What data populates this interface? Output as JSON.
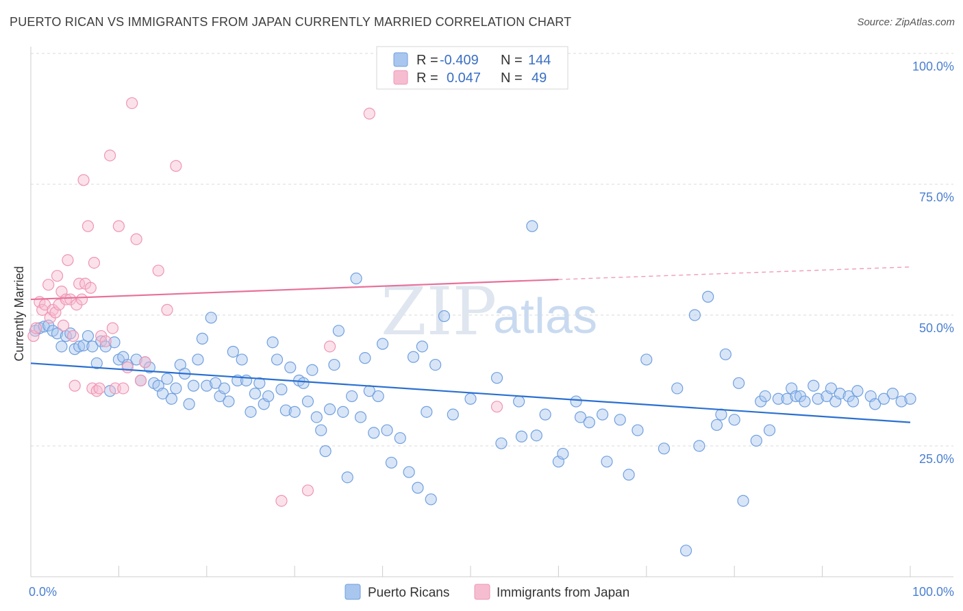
{
  "header": {
    "title": "PUERTO RICAN VS IMMIGRANTS FROM JAPAN CURRENTLY MARRIED CORRELATION CHART",
    "source": "Source: ZipAtlas.com"
  },
  "legend_box": {
    "rows": [
      {
        "r_label": "R =",
        "r_value": "-0.409",
        "n_label": "N =",
        "n_value": "144"
      },
      {
        "r_label": "R =",
        "r_value": "0.047",
        "n_label": "N =",
        "n_value": "49"
      }
    ]
  },
  "watermark": {
    "zip": "ZIP",
    "atlas": "atlas"
  },
  "colors": {
    "blue_fill": "#a9c6ee",
    "blue_stroke": "#6f9fe0",
    "blue_line": "#2a6fd1",
    "pink_fill": "#f6bdd0",
    "pink_stroke": "#ef95b4",
    "pink_line": "#e8709a",
    "grid": "#d9d9d9",
    "tick_label": "#4a7fd0"
  },
  "chart_data": {
    "type": "scatter",
    "title": "PUERTO RICAN VS IMMIGRANTS FROM JAPAN CURRENTLY MARRIED CORRELATION CHART",
    "xlabel": "",
    "ylabel": "Currently Married",
    "xlim": [
      0,
      100
    ],
    "ylim": [
      0,
      100
    ],
    "x_tick_labels": [
      "0.0%",
      "100.0%"
    ],
    "y_ticks": [
      25,
      50,
      75,
      100
    ],
    "y_tick_labels": [
      "25.0%",
      "50.0%",
      "75.0%",
      "100.0%"
    ],
    "grid": true,
    "legend_position": "bottom",
    "series": [
      {
        "name": "Puerto Ricans",
        "color": "#6f9fe0",
        "trend": {
          "x0": 0,
          "y0": 40.8,
          "x1": 100,
          "y1": 29.5
        },
        "points": [
          [
            0.5,
            47.0
          ],
          [
            1.0,
            47.5
          ],
          [
            1.5,
            47.8
          ],
          [
            2.0,
            48.0
          ],
          [
            2.5,
            47.0
          ],
          [
            3.0,
            46.5
          ],
          [
            3.5,
            44.0
          ],
          [
            4.0,
            46.0
          ],
          [
            4.5,
            46.5
          ],
          [
            5.0,
            43.5
          ],
          [
            5.5,
            44.0
          ],
          [
            6.0,
            44.2
          ],
          [
            6.5,
            46.0
          ],
          [
            7.0,
            44.0
          ],
          [
            7.5,
            40.8
          ],
          [
            8.0,
            45.0
          ],
          [
            8.5,
            44.0
          ],
          [
            9.0,
            35.5
          ],
          [
            9.5,
            44.8
          ],
          [
            10.0,
            41.5
          ],
          [
            10.5,
            42.0
          ],
          [
            11.0,
            40.5
          ],
          [
            12.0,
            41.5
          ],
          [
            12.5,
            37.5
          ],
          [
            13.0,
            41.0
          ],
          [
            13.5,
            40.0
          ],
          [
            14.0,
            37.0
          ],
          [
            14.5,
            36.5
          ],
          [
            15.0,
            35.0
          ],
          [
            15.5,
            37.8
          ],
          [
            16.0,
            34.0
          ],
          [
            16.5,
            36.0
          ],
          [
            17.0,
            40.5
          ],
          [
            17.5,
            38.8
          ],
          [
            18.0,
            33.0
          ],
          [
            18.5,
            36.5
          ],
          [
            19.0,
            41.5
          ],
          [
            19.5,
            45.5
          ],
          [
            20.0,
            36.5
          ],
          [
            20.5,
            49.5
          ],
          [
            21.0,
            37.0
          ],
          [
            21.5,
            34.5
          ],
          [
            22.0,
            36.0
          ],
          [
            22.5,
            33.5
          ],
          [
            23.0,
            43.0
          ],
          [
            23.5,
            37.5
          ],
          [
            24.0,
            41.5
          ],
          [
            24.5,
            37.5
          ],
          [
            25.0,
            31.5
          ],
          [
            25.5,
            35.0
          ],
          [
            26.0,
            37.0
          ],
          [
            26.5,
            33.0
          ],
          [
            27.0,
            34.5
          ],
          [
            27.5,
            44.8
          ],
          [
            28.0,
            41.5
          ],
          [
            28.5,
            35.8
          ],
          [
            29.0,
            31.8
          ],
          [
            29.5,
            40.0
          ],
          [
            30.0,
            31.5
          ],
          [
            30.5,
            37.5
          ],
          [
            31.0,
            37.0
          ],
          [
            31.5,
            33.5
          ],
          [
            32.0,
            39.5
          ],
          [
            32.5,
            30.5
          ],
          [
            33.0,
            28.0
          ],
          [
            33.5,
            24.0
          ],
          [
            34.0,
            32.0
          ],
          [
            34.5,
            40.5
          ],
          [
            35.0,
            47.0
          ],
          [
            35.5,
            31.5
          ],
          [
            36.0,
            19.0
          ],
          [
            36.5,
            34.5
          ],
          [
            37.0,
            57.0
          ],
          [
            37.5,
            30.5
          ],
          [
            38.0,
            41.8
          ],
          [
            38.5,
            35.5
          ],
          [
            39.0,
            27.5
          ],
          [
            39.5,
            34.5
          ],
          [
            40.0,
            44.5
          ],
          [
            40.5,
            28.0
          ],
          [
            41.0,
            21.8
          ],
          [
            42.0,
            26.5
          ],
          [
            43.0,
            20.0
          ],
          [
            43.5,
            42.0
          ],
          [
            44.0,
            17.0
          ],
          [
            44.5,
            44.0
          ],
          [
            45.0,
            31.5
          ],
          [
            45.5,
            14.8
          ],
          [
            46.0,
            40.5
          ],
          [
            47.0,
            49.8
          ],
          [
            48.0,
            31.0
          ],
          [
            50.0,
            34.0
          ],
          [
            53.0,
            38.0
          ],
          [
            53.5,
            25.5
          ],
          [
            55.5,
            33.5
          ],
          [
            55.8,
            26.8
          ],
          [
            57.0,
            67.0
          ],
          [
            57.5,
            27.0
          ],
          [
            58.5,
            31.0
          ],
          [
            60.0,
            22.0
          ],
          [
            60.5,
            23.5
          ],
          [
            62.0,
            33.5
          ],
          [
            62.5,
            30.5
          ],
          [
            63.5,
            29.5
          ],
          [
            65.0,
            31.0
          ],
          [
            65.5,
            22.0
          ],
          [
            67.0,
            30.0
          ],
          [
            68.0,
            19.5
          ],
          [
            69.0,
            28.0
          ],
          [
            70.0,
            41.5
          ],
          [
            72.0,
            24.5
          ],
          [
            73.5,
            36.0
          ],
          [
            74.5,
            5.0
          ],
          [
            75.5,
            50.0
          ],
          [
            76.0,
            25.0
          ],
          [
            77.0,
            53.5
          ],
          [
            78.0,
            29.0
          ],
          [
            78.5,
            31.0
          ],
          [
            79.0,
            42.5
          ],
          [
            80.0,
            30.0
          ],
          [
            80.5,
            37.0
          ],
          [
            81.0,
            14.5
          ],
          [
            82.5,
            26.0
          ],
          [
            83.0,
            33.5
          ],
          [
            83.5,
            34.5
          ],
          [
            84.0,
            28.0
          ],
          [
            85.0,
            34.0
          ],
          [
            86.0,
            34.0
          ],
          [
            86.5,
            36.0
          ],
          [
            87.0,
            34.5
          ],
          [
            87.5,
            34.5
          ],
          [
            88.0,
            33.5
          ],
          [
            89.0,
            36.5
          ],
          [
            89.5,
            34.0
          ],
          [
            90.5,
            34.5
          ],
          [
            91.0,
            36.0
          ],
          [
            91.5,
            33.5
          ],
          [
            92.0,
            35.0
          ],
          [
            93.0,
            34.5
          ],
          [
            93.5,
            33.5
          ],
          [
            94.0,
            35.5
          ],
          [
            95.5,
            34.5
          ],
          [
            96.0,
            33.0
          ],
          [
            97.0,
            34.0
          ],
          [
            98.0,
            35.0
          ],
          [
            99.0,
            33.5
          ],
          [
            100.0,
            34.0
          ]
        ]
      },
      {
        "name": "Immigrants from Japan",
        "color": "#ef95b4",
        "trend": {
          "x0": 0,
          "y0": 53.0,
          "x1": 60,
          "y1": 56.8,
          "x2": 100,
          "y2": 59.2
        },
        "points": [
          [
            0.3,
            46.0
          ],
          [
            0.6,
            47.5
          ],
          [
            1.0,
            52.5
          ],
          [
            1.3,
            51.0
          ],
          [
            1.6,
            52.0
          ],
          [
            2.0,
            55.8
          ],
          [
            2.2,
            49.5
          ],
          [
            2.5,
            51.0
          ],
          [
            2.8,
            50.5
          ],
          [
            3.0,
            57.5
          ],
          [
            3.2,
            52.0
          ],
          [
            3.5,
            54.5
          ],
          [
            3.7,
            48.0
          ],
          [
            4.0,
            53.0
          ],
          [
            4.2,
            60.5
          ],
          [
            4.5,
            53.0
          ],
          [
            4.8,
            46.0
          ],
          [
            5.0,
            36.5
          ],
          [
            5.2,
            52.0
          ],
          [
            5.5,
            56.0
          ],
          [
            5.8,
            53.0
          ],
          [
            6.0,
            75.8
          ],
          [
            6.2,
            56.0
          ],
          [
            6.5,
            67.0
          ],
          [
            6.8,
            55.2
          ],
          [
            7.0,
            36.0
          ],
          [
            7.2,
            60.0
          ],
          [
            7.5,
            35.5
          ],
          [
            7.8,
            36.0
          ],
          [
            8.0,
            46.0
          ],
          [
            8.5,
            45.0
          ],
          [
            9.0,
            80.5
          ],
          [
            9.3,
            47.5
          ],
          [
            9.6,
            36.0
          ],
          [
            10.0,
            67.0
          ],
          [
            10.5,
            36.0
          ],
          [
            11.0,
            40.0
          ],
          [
            11.5,
            90.5
          ],
          [
            12.0,
            64.5
          ],
          [
            12.5,
            37.5
          ],
          [
            13.0,
            41.0
          ],
          [
            14.5,
            58.5
          ],
          [
            15.5,
            51.0
          ],
          [
            16.5,
            78.5
          ],
          [
            28.5,
            14.5
          ],
          [
            31.5,
            16.5
          ],
          [
            34.0,
            44.0
          ],
          [
            38.5,
            88.5
          ],
          [
            53.0,
            32.5
          ]
        ]
      }
    ]
  }
}
